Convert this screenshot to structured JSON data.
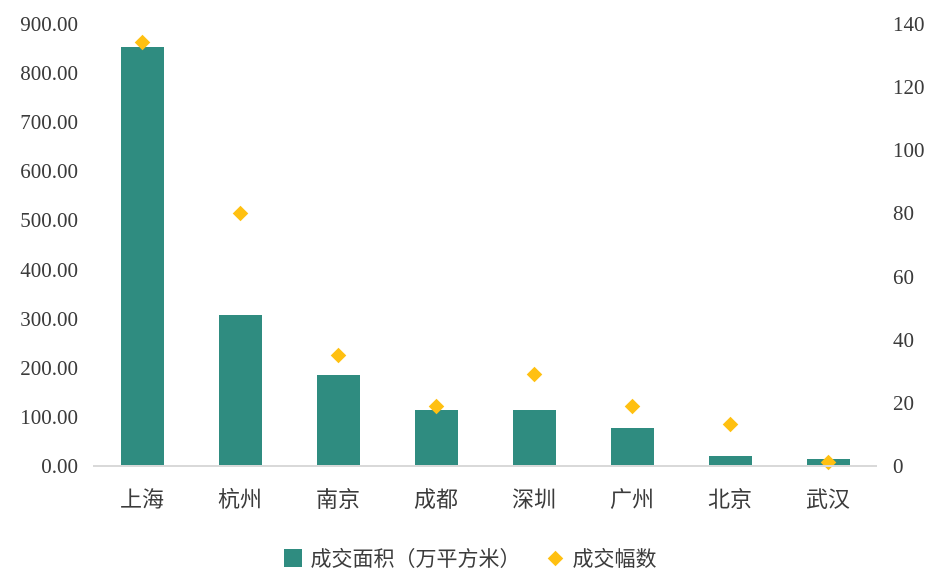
{
  "chart_data": {
    "type": "bar",
    "title": "",
    "xlabel": "",
    "ylabel": "",
    "categories": [
      "上海",
      "杭州",
      "南京",
      "成都",
      "深圳",
      "广州",
      "北京",
      "武汉"
    ],
    "series": [
      {
        "name": "成交面积（万平方米）",
        "type": "bar",
        "axis": "left",
        "color": "#2F8C80",
        "values": [
          853,
          307,
          186,
          114,
          114,
          77,
          21,
          14
        ]
      },
      {
        "name": "成交幅数",
        "type": "scatter",
        "marker": "diamond",
        "axis": "right",
        "color": "#FFC011",
        "values": [
          134,
          80,
          35,
          19,
          29,
          19,
          13,
          1
        ]
      }
    ],
    "left_axis": {
      "min": 0,
      "max": 900,
      "step": 100,
      "tick_labels": [
        "0.00",
        "100.00",
        "200.00",
        "300.00",
        "400.00",
        "500.00",
        "600.00",
        "700.00",
        "800.00",
        "900.00"
      ]
    },
    "right_axis": {
      "min": 0,
      "max": 140,
      "step": 20,
      "tick_labels": [
        "0",
        "20",
        "40",
        "60",
        "80",
        "100",
        "120",
        "140"
      ]
    },
    "grid": false,
    "legend_position": "bottom"
  },
  "legend": {
    "items": [
      {
        "label": "成交面积（万平方米）",
        "swatch": "square",
        "color": "#2F8C80"
      },
      {
        "label": "成交幅数",
        "swatch": "diamond",
        "color": "#FFC011"
      }
    ]
  },
  "colors": {
    "bar": "#2F8C80",
    "marker": "#FFC011",
    "axis_line": "#D9D9D9",
    "text": "#3B3B3B",
    "background": "#FFFFFF"
  }
}
